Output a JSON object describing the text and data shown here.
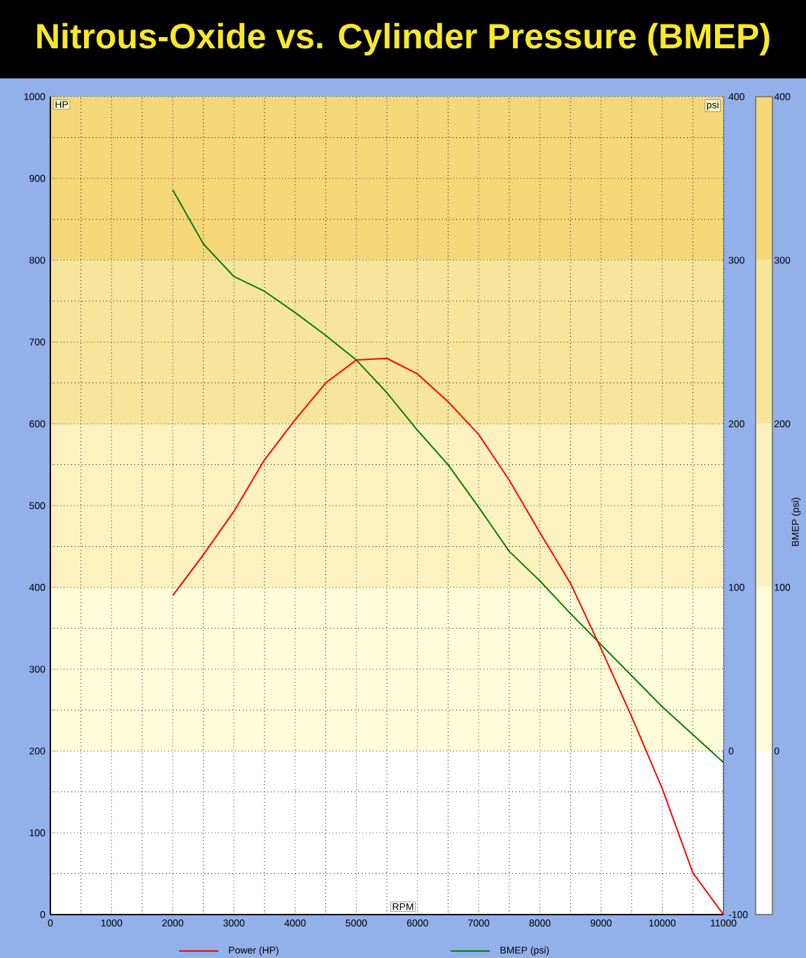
{
  "chart_data": {
    "type": "line",
    "title": "Nitrous-Oxide vs. Cylinder Pressure (BMEP)",
    "xlabel": "RPM",
    "ylabel": "HP",
    "y2label": "psi",
    "clabel": "BMEP (psi)",
    "x": [
      2000,
      2500,
      3000,
      3500,
      4000,
      4500,
      5000,
      5500,
      6000,
      6500,
      7000,
      7500,
      8000,
      8500,
      9000,
      9500,
      10000,
      10500,
      11000
    ],
    "series": [
      {
        "name": "Power (HP)",
        "color": "#ff0000",
        "values": [
          390,
          440,
          493,
          556,
          605,
          650,
          678,
          680,
          661,
          627,
          587,
          531,
          467,
          405,
          325,
          242,
          154,
          51,
          0
        ]
      },
      {
        "name": "BMEP (psi)",
        "color": "#008000",
        "axis": "y2",
        "values": [
          343,
          310,
          290,
          281,
          268,
          254,
          239,
          219,
          196,
          175,
          149,
          122,
          104,
          84,
          65,
          46,
          27,
          10,
          -7
        ]
      }
    ],
    "xlim": [
      0,
      11000
    ],
    "xticks": [
      0,
      1000,
      2000,
      3000,
      4000,
      5000,
      6000,
      7000,
      8000,
      9000,
      10000,
      11000
    ],
    "ylim": [
      0,
      1000
    ],
    "yticks": [
      0,
      100,
      200,
      300,
      400,
      500,
      600,
      700,
      800,
      900,
      1000
    ],
    "y2lim": [
      -100,
      400
    ],
    "y2ticks": [
      -100,
      0,
      100,
      200,
      300,
      400
    ],
    "bands": [
      {
        "axis": "y2",
        "from": 0,
        "to": 100,
        "color": "#fffcd9"
      },
      {
        "axis": "y2",
        "from": 100,
        "to": 200,
        "color": "#fdf1bf"
      },
      {
        "axis": "y2",
        "from": 200,
        "to": 300,
        "color": "#f6e59a"
      },
      {
        "axis": "y2",
        "from": 300,
        "to": 400,
        "color": "#f5d777"
      }
    ],
    "clim": [
      -100,
      400
    ],
    "cticks": [
      0,
      100,
      200,
      300,
      400
    ],
    "grid": true,
    "legend": "bottom"
  }
}
